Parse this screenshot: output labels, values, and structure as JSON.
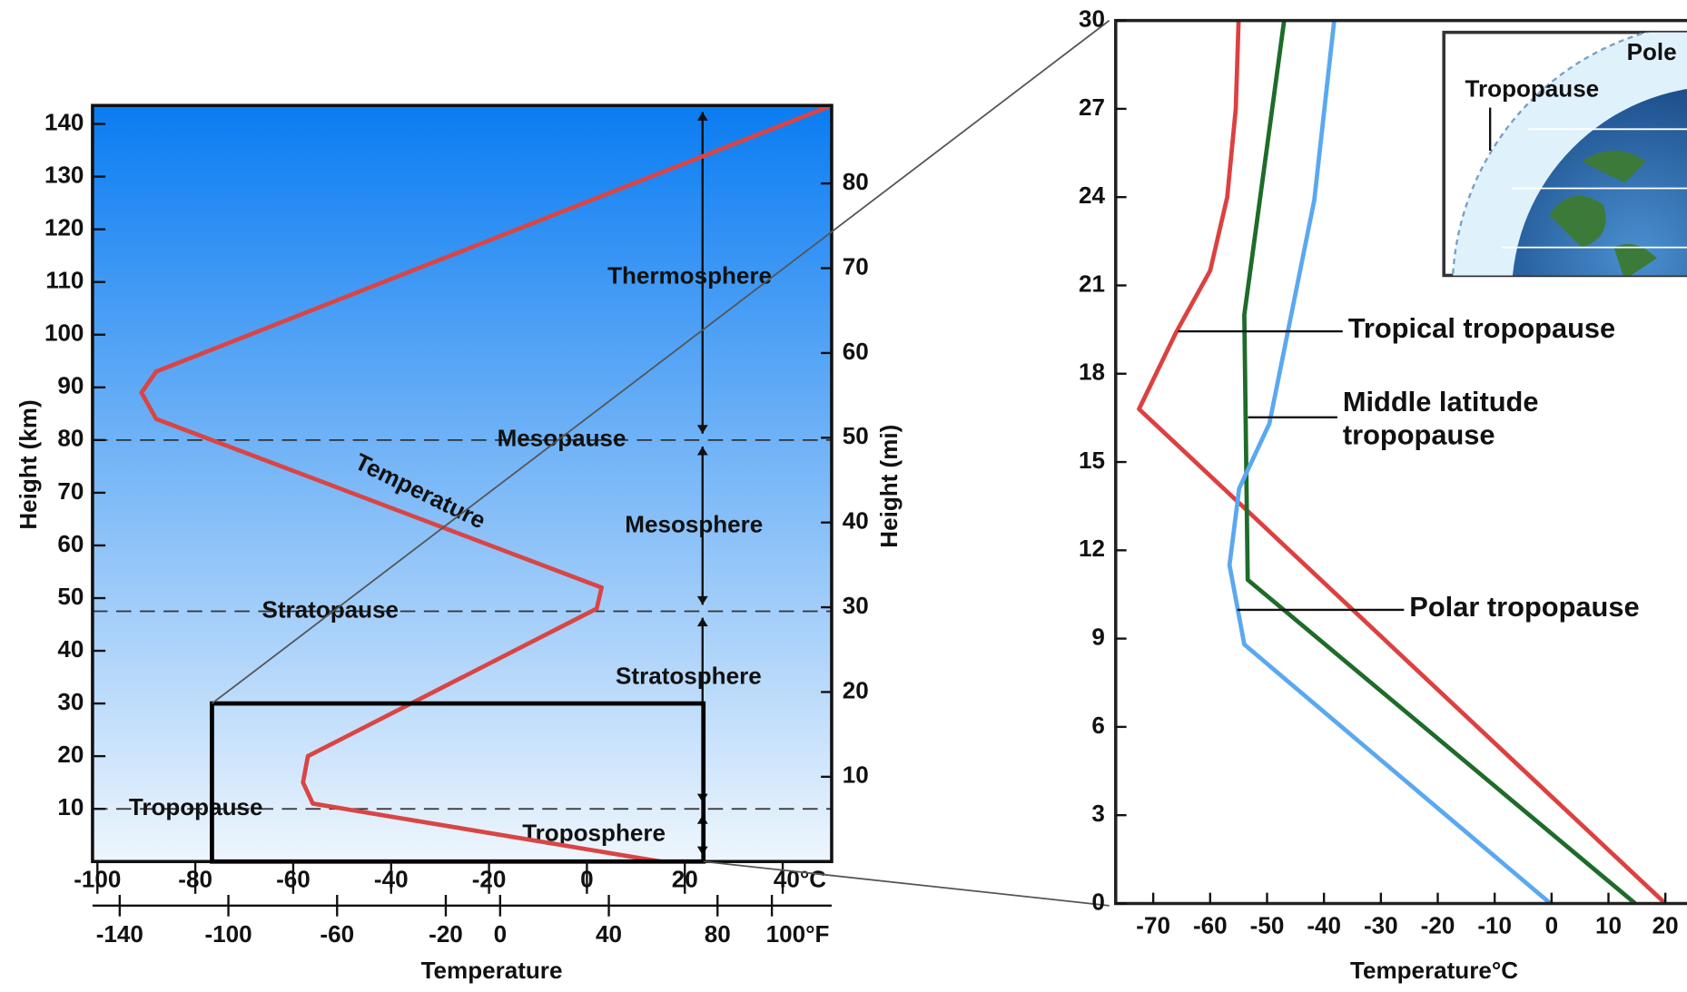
{
  "chart_data": [
    {
      "type": "line",
      "xlabel": "Temperature",
      "ylabel": "Height (km)",
      "y2label": "Height (mi)",
      "xlim": [
        -101,
        50
      ],
      "xticks": [
        -100,
        -80,
        -60,
        -40,
        -20,
        0,
        20,
        {
          "value": 40,
          "label": "40°C"
        }
      ],
      "x2lim": [
        -150,
        122
      ],
      "x2ticks": [
        -140,
        -100,
        -60,
        -20,
        0,
        40,
        80,
        {
          "value": 100,
          "label": "100°F"
        }
      ],
      "ylim": [
        0,
        143.5
      ],
      "yticks": [
        10,
        20,
        30,
        40,
        50,
        60,
        70,
        80,
        90,
        100,
        110,
        120,
        130,
        140
      ],
      "y2lim": [
        0,
        89.2
      ],
      "y2ticks": [
        10,
        20,
        30,
        40,
        50,
        60,
        70,
        80
      ],
      "series": [
        {
          "name": "Temperature",
          "color": "#d94545",
          "x": [
            15,
            -56,
            -58,
            -57,
            2,
            3,
            -88,
            -91,
            -88,
            50
          ],
          "values": [
            0,
            11,
            15,
            20,
            48,
            52,
            84,
            89,
            93,
            143.5
          ]
        }
      ],
      "pauses": [
        {
          "label": "Tropopause",
          "height": 10
        },
        {
          "label": "Stratopause",
          "height": 47.5
        },
        {
          "label": "Mesopause",
          "height": 80
        }
      ],
      "layers": [
        "Troposphere",
        "Stratosphere",
        "Mesosphere",
        "Thermosphere"
      ]
    },
    {
      "type": "line",
      "xlabel": "Temperature°C",
      "xlim": [
        -76.6,
        23.8
      ],
      "xticks": [
        -70,
        -60,
        -50,
        -40,
        -30,
        -20,
        -10,
        0,
        10,
        20
      ],
      "ylim": [
        0,
        30
      ],
      "yticks": [
        0,
        3,
        6,
        9,
        12,
        15,
        18,
        21,
        24,
        27,
        30
      ],
      "series": [
        {
          "name": "Tropical tropopause",
          "color": "#dd4040",
          "x": [
            20,
            -72.5,
            -66,
            -60,
            -57,
            -55.5,
            -55
          ],
          "values": [
            0,
            16.8,
            19.4,
            21.5,
            24,
            27,
            30
          ]
        },
        {
          "name": "Middle latitude tropopause",
          "color": "#1e6b2a",
          "x": [
            14.7,
            -53.4,
            -54,
            -47
          ],
          "values": [
            0,
            11,
            20,
            30
          ]
        },
        {
          "name": "Polar tropopause",
          "color": "#5aa8f0",
          "x": [
            -0.2,
            -54,
            -56.6,
            -54.9,
            -49.6,
            -41.7,
            -38.2
          ],
          "values": [
            0,
            8.8,
            11.5,
            14.1,
            16.3,
            23.9,
            30
          ]
        }
      ],
      "inset": {
        "pole": "Pole",
        "tropopause": "Tropopause"
      }
    }
  ]
}
